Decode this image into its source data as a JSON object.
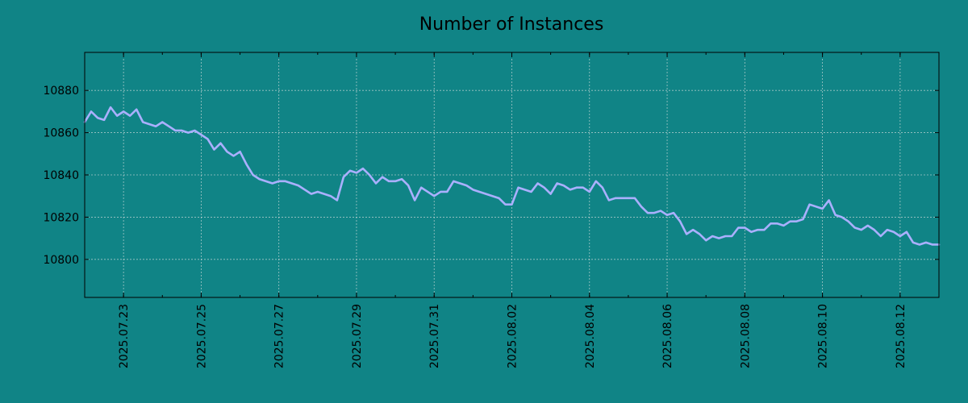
{
  "chart_data": {
    "type": "line",
    "title": "Number of Instances",
    "xlabel": "",
    "ylabel": "",
    "x_axis_type": "date",
    "xlim": [
      "2025-07-22 00:00",
      "2025-08-13 00:00"
    ],
    "ylim": [
      10782,
      10898
    ],
    "x_ticks": [
      "2025.07.23",
      "2025.07.25",
      "2025.07.27",
      "2025.07.29",
      "2025.07.31",
      "2025.08.02",
      "2025.08.04",
      "2025.08.06",
      "2025.08.08",
      "2025.08.10",
      "2025.08.12"
    ],
    "y_ticks": [
      10800,
      10820,
      10840,
      10860,
      10880
    ],
    "grid": true,
    "legend": "none",
    "colors": {
      "background": "#108486",
      "line": "#aab0ff",
      "grid": "#c8d8d8",
      "text": "#000000"
    },
    "series": [
      {
        "x": [
          "2025-07-22 00:00",
          "2025-07-22 04:00",
          "2025-07-22 08:00",
          "2025-07-22 12:00",
          "2025-07-22 16:00",
          "2025-07-22 20:00",
          "2025-07-23 00:00",
          "2025-07-23 04:00",
          "2025-07-23 08:00",
          "2025-07-23 12:00",
          "2025-07-23 16:00",
          "2025-07-23 20:00",
          "2025-07-24 00:00",
          "2025-07-24 04:00",
          "2025-07-24 08:00",
          "2025-07-24 12:00",
          "2025-07-24 16:00",
          "2025-07-24 20:00",
          "2025-07-25 00:00",
          "2025-07-25 04:00",
          "2025-07-25 08:00",
          "2025-07-25 12:00",
          "2025-07-25 16:00",
          "2025-07-25 20:00",
          "2025-07-26 00:00",
          "2025-07-26 04:00",
          "2025-07-26 08:00",
          "2025-07-26 12:00",
          "2025-07-26 16:00",
          "2025-07-26 20:00",
          "2025-07-27 00:00",
          "2025-07-27 04:00",
          "2025-07-27 08:00",
          "2025-07-27 12:00",
          "2025-07-27 16:00",
          "2025-07-27 20:00",
          "2025-07-28 00:00",
          "2025-07-28 04:00",
          "2025-07-28 08:00",
          "2025-07-28 12:00",
          "2025-07-28 16:00",
          "2025-07-28 20:00",
          "2025-07-29 00:00",
          "2025-07-29 04:00",
          "2025-07-29 08:00",
          "2025-07-29 12:00",
          "2025-07-29 16:00",
          "2025-07-29 20:00",
          "2025-07-30 00:00",
          "2025-07-30 04:00",
          "2025-07-30 08:00",
          "2025-07-30 12:00",
          "2025-07-30 16:00",
          "2025-07-30 20:00",
          "2025-07-31 00:00",
          "2025-07-31 04:00",
          "2025-07-31 08:00",
          "2025-07-31 12:00",
          "2025-07-31 16:00",
          "2025-07-31 20:00",
          "2025-08-01 00:00",
          "2025-08-01 04:00",
          "2025-08-01 08:00",
          "2025-08-01 12:00",
          "2025-08-01 16:00",
          "2025-08-01 20:00",
          "2025-08-02 00:00",
          "2025-08-02 04:00",
          "2025-08-02 08:00",
          "2025-08-02 12:00",
          "2025-08-02 16:00",
          "2025-08-02 20:00",
          "2025-08-03 00:00",
          "2025-08-03 04:00",
          "2025-08-03 08:00",
          "2025-08-03 12:00",
          "2025-08-03 16:00",
          "2025-08-03 20:00",
          "2025-08-04 00:00",
          "2025-08-04 04:00",
          "2025-08-04 08:00",
          "2025-08-04 12:00",
          "2025-08-04 16:00",
          "2025-08-04 20:00",
          "2025-08-05 00:00",
          "2025-08-05 04:00",
          "2025-08-05 08:00",
          "2025-08-05 12:00",
          "2025-08-05 16:00",
          "2025-08-05 20:00",
          "2025-08-06 00:00",
          "2025-08-06 04:00",
          "2025-08-06 08:00",
          "2025-08-06 12:00",
          "2025-08-06 16:00",
          "2025-08-06 20:00",
          "2025-08-07 00:00",
          "2025-08-07 04:00",
          "2025-08-07 08:00",
          "2025-08-07 12:00",
          "2025-08-07 16:00",
          "2025-08-07 20:00",
          "2025-08-08 00:00",
          "2025-08-08 04:00",
          "2025-08-08 08:00",
          "2025-08-08 12:00",
          "2025-08-08 16:00",
          "2025-08-08 20:00",
          "2025-08-09 00:00",
          "2025-08-09 04:00",
          "2025-08-09 08:00",
          "2025-08-09 12:00",
          "2025-08-09 16:00",
          "2025-08-09 20:00",
          "2025-08-10 00:00",
          "2025-08-10 04:00",
          "2025-08-10 08:00",
          "2025-08-10 12:00",
          "2025-08-10 16:00",
          "2025-08-10 20:00",
          "2025-08-11 00:00",
          "2025-08-11 04:00",
          "2025-08-11 08:00",
          "2025-08-11 12:00",
          "2025-08-11 16:00",
          "2025-08-11 20:00",
          "2025-08-12 00:00",
          "2025-08-12 04:00",
          "2025-08-12 08:00",
          "2025-08-12 12:00",
          "2025-08-12 16:00",
          "2025-08-12 20:00",
          "2025-08-13 00:00"
        ],
        "y": [
          10865,
          10870,
          10867,
          10866,
          10872,
          10868,
          10870,
          10868,
          10871,
          10865,
          10864,
          10863,
          10865,
          10863,
          10861,
          10861,
          10860,
          10861,
          10859,
          10857,
          10852,
          10855,
          10851,
          10849,
          10851,
          10845,
          10840,
          10838,
          10837,
          10836,
          10837,
          10837,
          10836,
          10835,
          10833,
          10831,
          10832,
          10831,
          10830,
          10828,
          10839,
          10842,
          10841,
          10843,
          10840,
          10836,
          10839,
          10837,
          10837,
          10838,
          10835,
          10828,
          10834,
          10832,
          10830,
          10832,
          10832,
          10837,
          10836,
          10835,
          10833,
          10832,
          10831,
          10830,
          10829,
          10826,
          10826,
          10834,
          10833,
          10832,
          10836,
          10834,
          10831,
          10836,
          10835,
          10833,
          10834,
          10834,
          10832,
          10837,
          10834,
          10828,
          10829,
          10829,
          10829,
          10829,
          10825,
          10822,
          10822,
          10823,
          10821,
          10822,
          10818,
          10812,
          10814,
          10812,
          10809,
          10811,
          10810,
          10811,
          10811,
          10815,
          10815,
          10813,
          10814,
          10814,
          10817,
          10817,
          10816,
          10818,
          10818,
          10819,
          10826,
          10825,
          10824,
          10828,
          10821,
          10820,
          10818,
          10815,
          10814,
          10816,
          10814,
          10811,
          10814,
          10813,
          10811,
          10813,
          10808,
          10807,
          10808,
          10807,
          10807
        ]
      }
    ]
  }
}
